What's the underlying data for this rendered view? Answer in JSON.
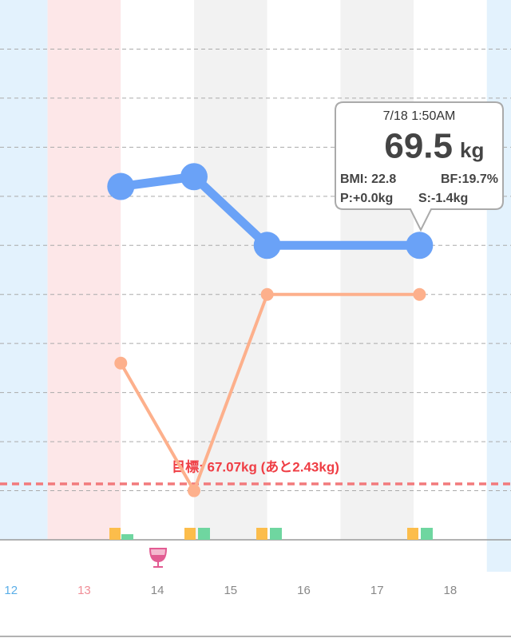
{
  "chart_data": {
    "type": "line",
    "x": [
      14.0,
      15.0,
      16.0,
      18.08
    ],
    "xlim": [
      12.35,
      19.33
    ],
    "xticks": [
      {
        "value": 12.5,
        "label": "12"
      },
      {
        "value": 13.5,
        "label": "13"
      },
      {
        "value": 14.5,
        "label": "14"
      },
      {
        "value": 15.5,
        "label": "15"
      },
      {
        "value": 16.5,
        "label": "16"
      },
      {
        "value": 17.5,
        "label": "17"
      },
      {
        "value": 18.5,
        "label": "18"
      }
    ],
    "ylim": [
      66.5,
      72.0
    ],
    "yticks": [
      67.0,
      67.5,
      68.0,
      68.5,
      69.0,
      69.5,
      70.0,
      70.5,
      71.0,
      71.5
    ],
    "y2lim": [
      17.2,
      22.7
    ],
    "grid": true,
    "series": [
      {
        "color": "#6aa2f7",
        "values": [
          70.1,
          70.2,
          69.5,
          69.5
        ]
      },
      {
        "color": "#fdb08c",
        "axis": "y2",
        "values": [
          19.0,
          17.7,
          19.7,
          19.7
        ]
      }
    ],
    "goal": {
      "value": 67.07,
      "label": "目標: 67.07kg (あと2.43kg)",
      "color": "#f27a7c"
    },
    "tooltip": {
      "date": "7/18 1:50AM",
      "weight": "69.5",
      "unit": "kg",
      "bmi": "BMI: 22.8",
      "bf": "BF:19.7%",
      "p": "P:+0.0kg",
      "s": "S:-1.4kg"
    }
  }
}
